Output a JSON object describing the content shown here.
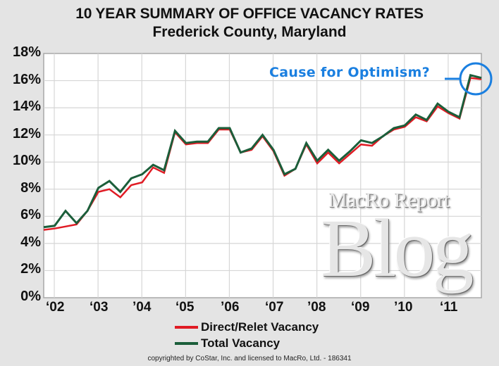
{
  "header": {
    "title": "10 YEAR SUMMARY OF OFFICE VACANCY RATES",
    "subtitle": "Frederick County, Maryland"
  },
  "axes": {
    "y_ticks": [
      "18%",
      "16%",
      "14%",
      "12%",
      "10%",
      "8%",
      "6%",
      "4%",
      "2%",
      "0%"
    ],
    "x_ticks": [
      "‘02",
      "‘03",
      "’04",
      "‘05",
      "’06",
      "‘07",
      "’08",
      "‘09",
      "’10",
      "‘11"
    ]
  },
  "legend": {
    "items": [
      {
        "label": "Direct/Relet Vacancy",
        "color": "#e01b24"
      },
      {
        "label": "Total Vacancy",
        "color": "#1b5e3a"
      }
    ]
  },
  "annotation": {
    "text": "Cause for Optimism?",
    "color": "#1a7fe0"
  },
  "watermark": {
    "line1": "MacRo Report",
    "line2": "Blog"
  },
  "credit": "copyrighted by CoStar, Inc. and licensed to MacRo, Ltd. - 186341",
  "chart_data": {
    "type": "line",
    "title": "10 YEAR SUMMARY OF OFFICE VACANCY RATES",
    "subtitle": "Frederick County, Maryland",
    "xlabel": "",
    "ylabel": "",
    "ylim": [
      0,
      18
    ],
    "y_ticks": [
      0,
      2,
      4,
      6,
      8,
      10,
      12,
      14,
      16,
      18
    ],
    "y_tick_format": "%",
    "x_tick_labels": [
      "'02",
      "'03",
      "'04",
      "'05",
      "'06",
      "'07",
      "'08",
      "'09",
      "'10",
      "'11"
    ],
    "grid": true,
    "legend_position": "bottom",
    "x": [
      "2001Q4",
      "2002Q1",
      "2002Q2",
      "2002Q3",
      "2002Q4",
      "2003Q1",
      "2003Q2",
      "2003Q3",
      "2003Q4",
      "2004Q1",
      "2004Q2",
      "2004Q3",
      "2004Q4",
      "2005Q1",
      "2005Q2",
      "2005Q3",
      "2005Q4",
      "2006Q1",
      "2006Q2",
      "2006Q3",
      "2006Q4",
      "2007Q1",
      "2007Q2",
      "2007Q3",
      "2007Q4",
      "2008Q1",
      "2008Q2",
      "2008Q3",
      "2008Q4",
      "2009Q1",
      "2009Q2",
      "2009Q3",
      "2009Q4",
      "2010Q1",
      "2010Q2",
      "2010Q3",
      "2010Q4",
      "2011Q1",
      "2011Q2",
      "2011Q3",
      "2011Q4"
    ],
    "series": [
      {
        "name": "Direct/Relet Vacancy",
        "color": "#e01b24",
        "values": [
          5.0,
          5.1,
          5.25,
          5.4,
          6.4,
          7.8,
          8.0,
          7.4,
          8.3,
          8.5,
          9.6,
          9.2,
          12.2,
          11.3,
          11.4,
          11.4,
          12.4,
          12.4,
          10.7,
          10.9,
          11.9,
          10.8,
          9.0,
          9.5,
          11.3,
          9.9,
          10.7,
          9.9,
          10.6,
          11.3,
          11.2,
          11.9,
          12.4,
          12.6,
          13.3,
          13.0,
          14.1,
          13.6,
          13.2,
          16.2,
          16.1
        ]
      },
      {
        "name": "Total Vacancy",
        "color": "#1b5e3a",
        "values": [
          5.2,
          5.3,
          6.4,
          5.5,
          6.4,
          8.1,
          8.6,
          7.8,
          8.8,
          9.1,
          9.8,
          9.4,
          12.3,
          11.4,
          11.5,
          11.5,
          12.5,
          12.5,
          10.7,
          11.0,
          12.0,
          10.9,
          9.1,
          9.5,
          11.4,
          10.1,
          10.9,
          10.1,
          10.8,
          11.6,
          11.4,
          11.9,
          12.5,
          12.7,
          13.5,
          13.1,
          14.3,
          13.7,
          13.3,
          16.4,
          16.2
        ]
      }
    ],
    "annotations": [
      {
        "text": "Cause for Optimism?",
        "target": "2011Q3-2011Q4 peak",
        "shape": "circle"
      }
    ]
  }
}
